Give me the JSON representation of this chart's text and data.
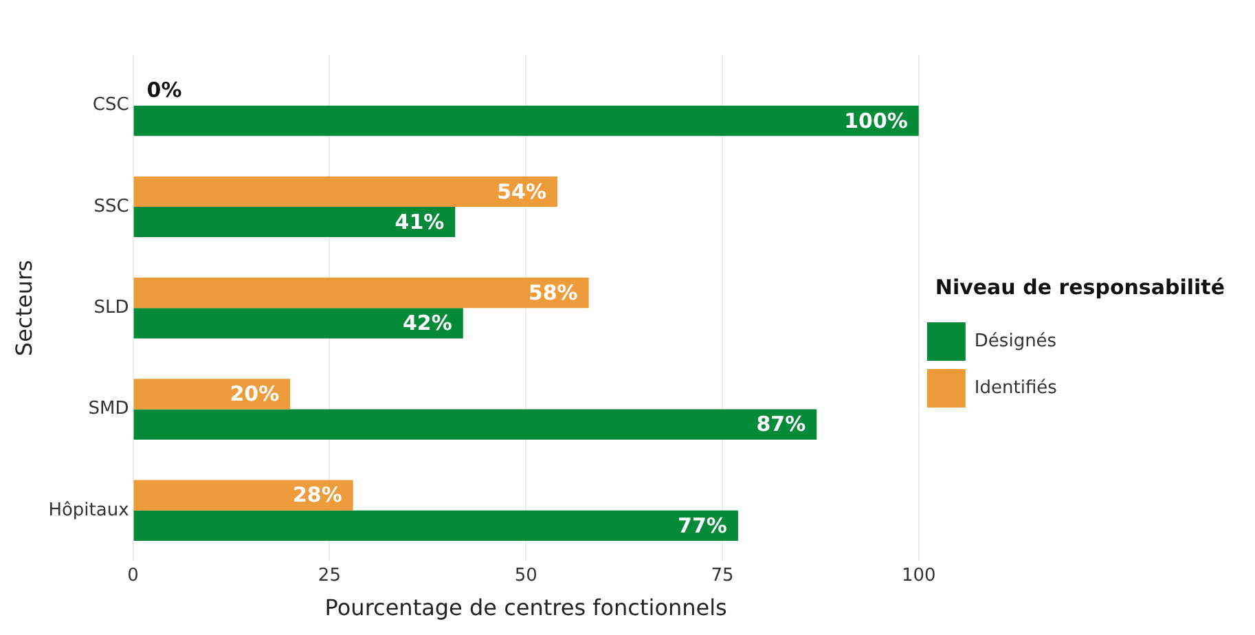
{
  "chart_data": {
    "type": "bar",
    "orientation": "horizontal",
    "categories": [
      "CSC",
      "SSC",
      "SLD",
      "SMD",
      "Hôpitaux"
    ],
    "series": [
      {
        "name": "Identifiés",
        "color": "#ee9b3b",
        "values": [
          0,
          54,
          58,
          20,
          28
        ],
        "value_labels": [
          "0%",
          "54%",
          "58%",
          "20%",
          "28%"
        ]
      },
      {
        "name": "Désignés",
        "color": "#058a3a",
        "values": [
          100,
          41,
          42,
          87,
          77
        ],
        "value_labels": [
          "100%",
          "41%",
          "42%",
          "87%",
          "77%"
        ]
      }
    ],
    "xlim": [
      0,
      100
    ],
    "xticks": [
      0,
      25,
      50,
      75,
      100
    ],
    "xlabel": "Pourcentage de centres fonctionnels",
    "ylabel": "Secteurs",
    "legend_title": "Niveau de responsabilité",
    "legend": "right",
    "grid": "x"
  }
}
